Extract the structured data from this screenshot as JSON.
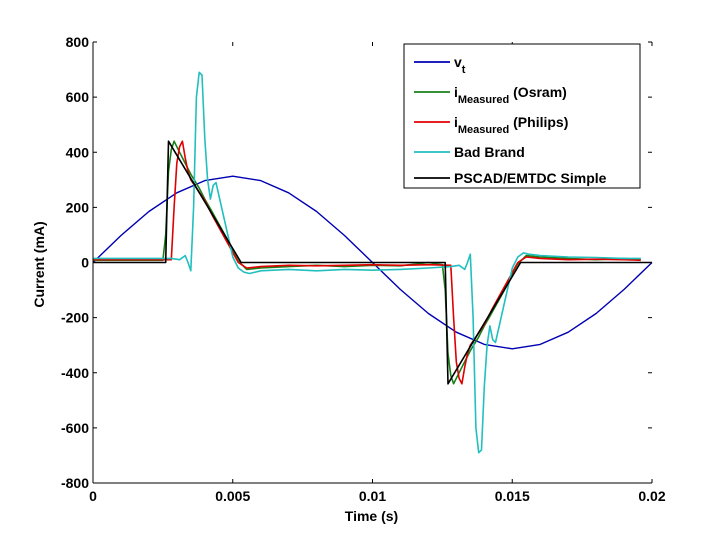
{
  "chart_data": {
    "type": "line",
    "title": "",
    "xlabel": "Time (s)",
    "ylabel": "Current (mA)",
    "xlim": [
      0,
      0.02
    ],
    "ylim": [
      -800,
      800
    ],
    "xticks": [
      0,
      0.005,
      0.01,
      0.015,
      0.02
    ],
    "xtick_labels": [
      "0",
      "0.005",
      "0.01",
      "0.015",
      "0.02"
    ],
    "yticks": [
      -800,
      -600,
      -400,
      -200,
      0,
      200,
      400,
      600,
      800
    ],
    "ytick_labels": [
      "-800",
      "-600",
      "-400",
      "-200",
      "0",
      "200",
      "400",
      "600",
      "800"
    ],
    "grid": false,
    "legend_position": "top-right",
    "series": [
      {
        "name": "vt",
        "legend": {
          "main": "v",
          "sub": "t",
          "suffix": ""
        },
        "color": "#0000b3",
        "x": [
          0,
          0.001,
          0.002,
          0.003,
          0.004,
          0.005,
          0.006,
          0.007,
          0.008,
          0.009,
          0.01,
          0.011,
          0.012,
          0.013,
          0.014,
          0.015,
          0.016,
          0.017,
          0.018,
          0.019,
          0.02
        ],
        "y": [
          0,
          98,
          185,
          253,
          297,
          313,
          297,
          253,
          185,
          98,
          0,
          -98,
          -185,
          -253,
          -297,
          -313,
          -297,
          -253,
          -185,
          -98,
          0
        ]
      },
      {
        "name": "iMeasured (Osram)",
        "legend": {
          "main": "i",
          "sub": "Measured",
          "suffix": " (Osram)"
        },
        "color": "#1a801a",
        "x": [
          0,
          0.0025,
          0.0026,
          0.0027,
          0.0028,
          0.0029,
          0.003,
          0.0031,
          0.0032,
          0.0033,
          0.0035,
          0.0038,
          0.004,
          0.0042,
          0.0045,
          0.0048,
          0.005,
          0.0052,
          0.0055,
          0.006,
          0.007,
          0.008,
          0.009,
          0.01,
          0.011,
          0.012,
          0.0125,
          0.0126,
          0.0127,
          0.0128,
          0.0129,
          0.013,
          0.0131,
          0.0132,
          0.0133,
          0.0135,
          0.0138,
          0.014,
          0.0142,
          0.0145,
          0.0148,
          0.015,
          0.0152,
          0.0155,
          0.016,
          0.017,
          0.018,
          0.019,
          0.0196
        ],
        "y": [
          8,
          8,
          100,
          330,
          410,
          440,
          420,
          400,
          380,
          360,
          320,
          270,
          230,
          195,
          140,
          85,
          40,
          5,
          -25,
          -20,
          -15,
          -10,
          -15,
          -10,
          -12,
          0,
          -8,
          -100,
          -330,
          -410,
          -440,
          -420,
          -400,
          -380,
          -360,
          -320,
          -270,
          -230,
          -195,
          -140,
          -85,
          -40,
          -5,
          25,
          20,
          15,
          10,
          15,
          10
        ]
      },
      {
        "name": "iMeasured (Philips)",
        "legend": {
          "main": "i",
          "sub": "Measured",
          "suffix": " (Philips)"
        },
        "color": "#e00000",
        "x": [
          0,
          0.0028,
          0.0029,
          0.003,
          0.0031,
          0.0032,
          0.0033,
          0.0034,
          0.0035,
          0.0037,
          0.004,
          0.0043,
          0.0046,
          0.0049,
          0.0052,
          0.0055,
          0.006,
          0.007,
          0.008,
          0.009,
          0.01,
          0.011,
          0.012,
          0.0128,
          0.0129,
          0.013,
          0.0131,
          0.0132,
          0.0133,
          0.0134,
          0.0135,
          0.0137,
          0.014,
          0.0143,
          0.0146,
          0.0149,
          0.0152,
          0.0155,
          0.016,
          0.017,
          0.018,
          0.019,
          0.0196
        ],
        "y": [
          10,
          10,
          200,
          360,
          420,
          440,
          380,
          330,
          300,
          270,
          225,
          165,
          110,
          55,
          0,
          -20,
          -15,
          -10,
          -12,
          -10,
          -8,
          -10,
          -8,
          -10,
          -200,
          -360,
          -420,
          -440,
          -380,
          -330,
          -300,
          -270,
          -225,
          -165,
          -110,
          -55,
          0,
          20,
          15,
          10,
          12,
          10,
          8
        ]
      },
      {
        "name": "Bad Brand",
        "legend": {
          "main": "Bad Brand",
          "sub": "",
          "suffix": ""
        },
        "color": "#22bfbf",
        "x": [
          0,
          0.0028,
          0.0031,
          0.0033,
          0.0034,
          0.0035,
          0.0036,
          0.0037,
          0.0038,
          0.0039,
          0.004,
          0.0041,
          0.0042,
          0.0043,
          0.0044,
          0.0046,
          0.0048,
          0.005,
          0.0052,
          0.0054,
          0.0056,
          0.006,
          0.007,
          0.008,
          0.009,
          0.01,
          0.011,
          0.012,
          0.0128,
          0.0131,
          0.0133,
          0.0134,
          0.0135,
          0.0136,
          0.0137,
          0.0138,
          0.0139,
          0.014,
          0.0141,
          0.0142,
          0.0143,
          0.0144,
          0.0146,
          0.0148,
          0.015,
          0.0152,
          0.0154,
          0.0156,
          0.016,
          0.017,
          0.018,
          0.019,
          0.0196
        ],
        "y": [
          15,
          15,
          10,
          25,
          0,
          -30,
          200,
          600,
          690,
          680,
          450,
          300,
          230,
          280,
          290,
          200,
          110,
          20,
          -20,
          -35,
          -40,
          -30,
          -25,
          -30,
          -25,
          -28,
          -25,
          -20,
          -15,
          -10,
          -25,
          0,
          30,
          -200,
          -600,
          -690,
          -680,
          -450,
          -300,
          -230,
          -280,
          -290,
          -200,
          -110,
          -20,
          20,
          35,
          30,
          25,
          20,
          18,
          15,
          15
        ]
      },
      {
        "name": "PSCAD/EMTDC Simple",
        "legend": {
          "main": "PSCAD/EMTDC Simple",
          "sub": "",
          "suffix": ""
        },
        "color": "#000000",
        "x": [
          0,
          0.0026,
          0.0027,
          0.0053,
          0.0125,
          0.0126,
          0.0127,
          0.0153,
          0.02
        ],
        "y": [
          0,
          0,
          440,
          0,
          0,
          0,
          -440,
          0,
          0
        ]
      }
    ]
  }
}
